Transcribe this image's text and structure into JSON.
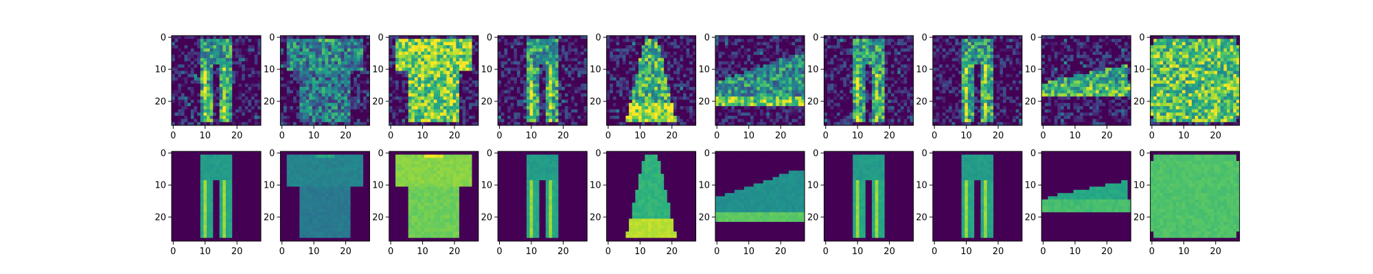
{
  "chart_data": {
    "type": "heatmap",
    "layout": {
      "rows": 2,
      "cols": 10
    },
    "colormap": "viridis",
    "image_size": [
      28,
      28
    ],
    "xlim": [
      -0.5,
      27.5
    ],
    "ylim": [
      27.5,
      -0.5
    ],
    "xticks": [
      0,
      10,
      20
    ],
    "yticks": [
      0,
      10,
      20
    ],
    "xtick_labels": [
      "0",
      "10",
      "20"
    ],
    "ytick_labels": [
      "0",
      "10",
      "20"
    ],
    "rows": [
      {
        "row": "noisy inputs",
        "noise": 0.28,
        "items": [
          "trouser",
          "tshirt",
          "tshirt-bright",
          "trouser",
          "dress",
          "sneaker",
          "trouser",
          "trouser",
          "sandal",
          "bag"
        ]
      },
      {
        "row": "reconstructions",
        "noise": 0.0,
        "items": [
          "trouser",
          "tshirt",
          "tshirt-bright",
          "trouser",
          "dress",
          "sneaker",
          "trouser",
          "trouser",
          "sandal",
          "bag"
        ]
      }
    ]
  }
}
